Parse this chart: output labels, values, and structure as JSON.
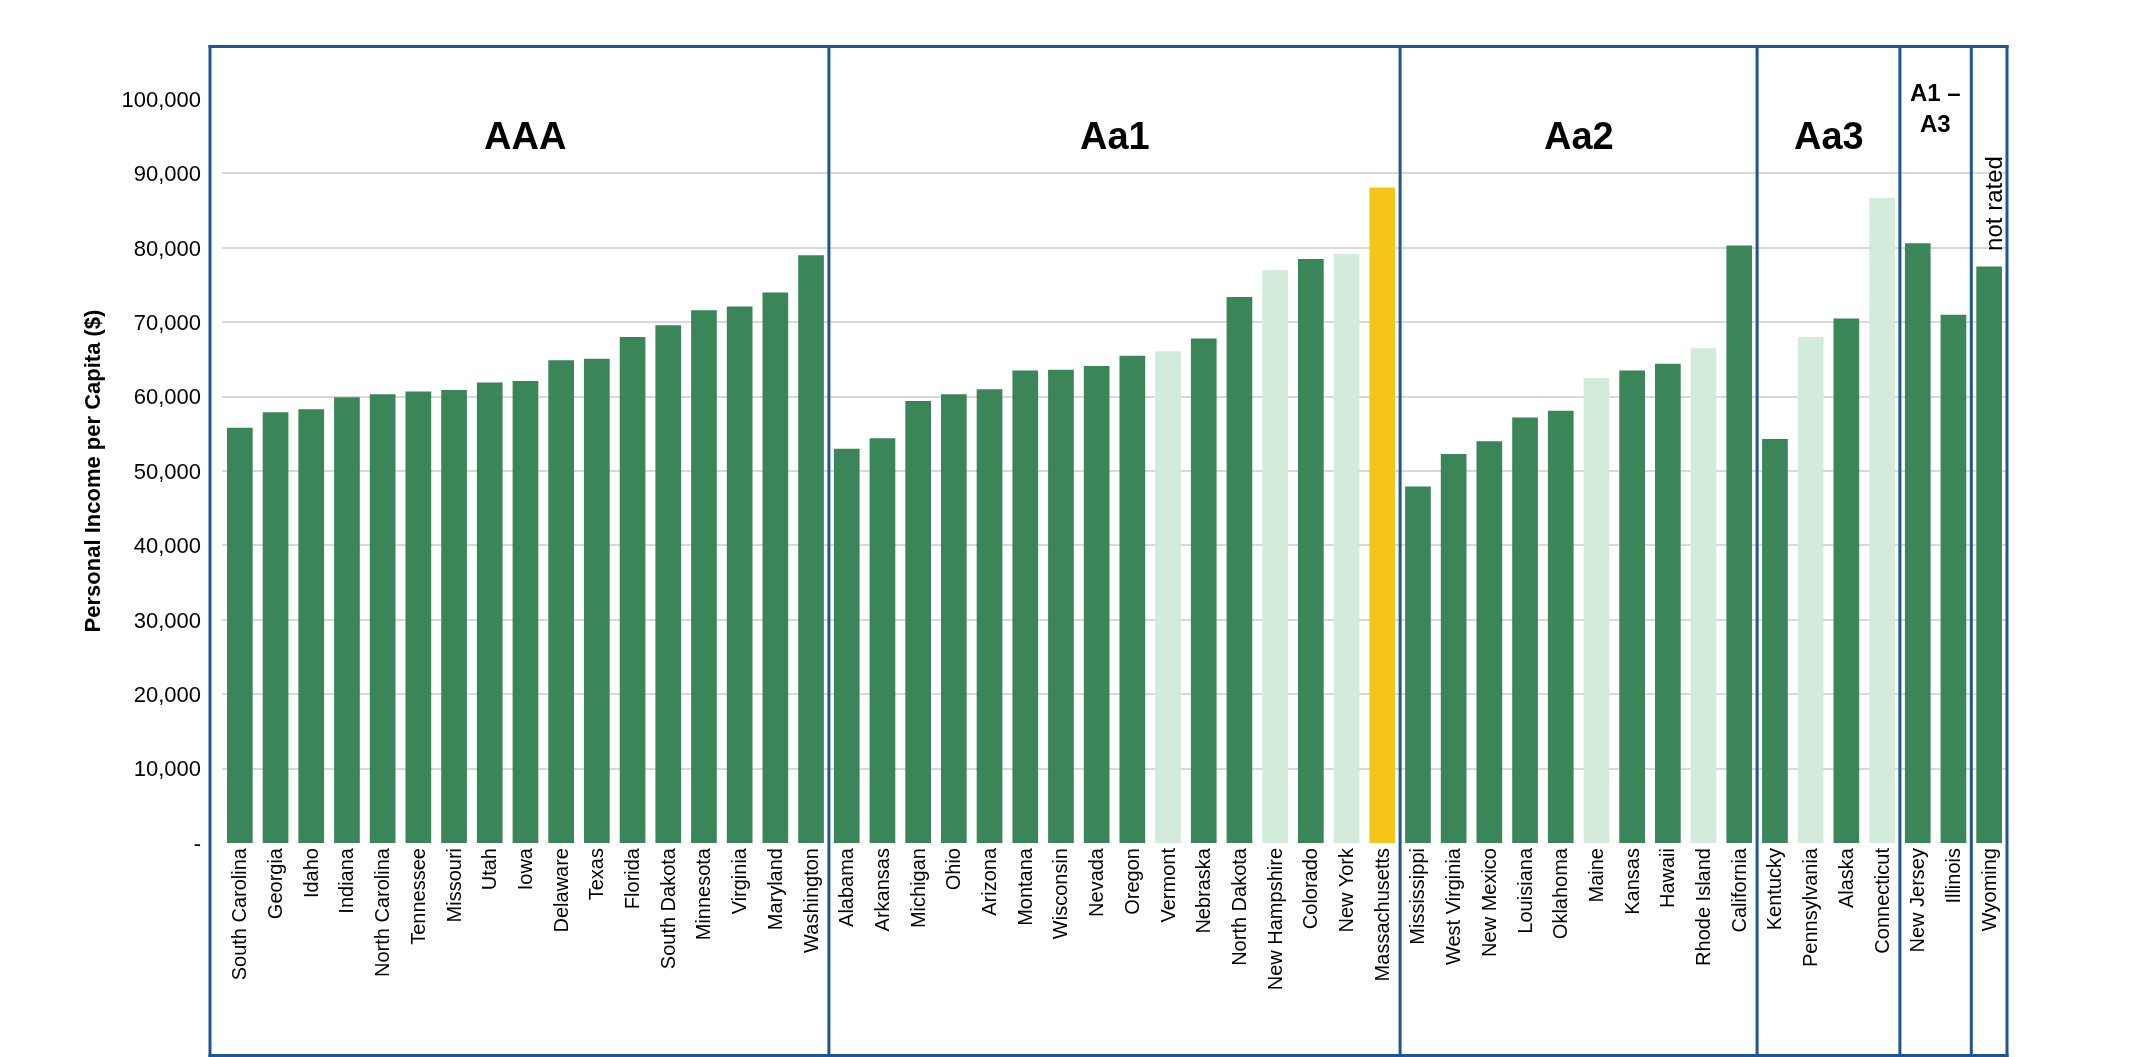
{
  "chart_data": {
    "type": "bar",
    "ylabel": "Personal Income per Capita ($)",
    "categories": [
      "South Carolina",
      "Georgia",
      "Idaho",
      "Indiana",
      "North Carolina",
      "Tennessee",
      "Missouri",
      "Utah",
      "Iowa",
      "Delaware",
      "Texas",
      "Florida",
      "South Dakota",
      "Minnesota",
      "Virginia",
      "Maryland",
      "Washington",
      "Alabama",
      "Arkansas",
      "Michigan",
      "Ohio",
      "Arizona",
      "Montana",
      "Wisconsin",
      "Nevada",
      "Oregon",
      "Vermont",
      "Nebraska",
      "North Dakota",
      "New Hampshire",
      "Colorado",
      "New York",
      "Massachusetts",
      "Mississippi",
      "West Virginia",
      "New Mexico",
      "Louisiana",
      "Oklahoma",
      "Maine",
      "Kansas",
      "Hawaii",
      "Rhode Island",
      "California",
      "Kentucky",
      "Pennsylvania",
      "Alaska",
      "Connecticut",
      "New Jersey",
      "Illinois",
      "Wyoming"
    ],
    "values": [
      55800,
      57900,
      58300,
      59900,
      60300,
      60700,
      60900,
      61900,
      62100,
      64900,
      65100,
      68000,
      69600,
      71600,
      72100,
      74000,
      79000,
      53000,
      54400,
      59400,
      60300,
      61000,
      63500,
      63600,
      64100,
      65500,
      66100,
      67800,
      73400,
      77000,
      78500,
      79200,
      88100,
      47900,
      52300,
      54000,
      57200,
      58100,
      62500,
      63500,
      64400,
      66500,
      80300,
      54300,
      68000,
      70500,
      86700,
      80600,
      71000,
      77500
    ],
    "colors": [
      "#3a8659",
      "#3a8659",
      "#3a8659",
      "#3a8659",
      "#3a8659",
      "#3a8659",
      "#3a8659",
      "#3a8659",
      "#3a8659",
      "#3a8659",
      "#3a8659",
      "#3a8659",
      "#3a8659",
      "#3a8659",
      "#3a8659",
      "#3a8659",
      "#3a8659",
      "#3a8659",
      "#3a8659",
      "#3a8659",
      "#3a8659",
      "#3a8659",
      "#3a8659",
      "#3a8659",
      "#3a8659",
      "#3a8659",
      "#d2ebdb",
      "#3a8659",
      "#3a8659",
      "#d2ebdb",
      "#3a8659",
      "#d2ebdb",
      "#f5c518",
      "#3a8659",
      "#3a8659",
      "#3a8659",
      "#3a8659",
      "#3a8659",
      "#d2ebdb",
      "#3a8659",
      "#3a8659",
      "#d2ebdb",
      "#3a8659",
      "#3a8659",
      "#d2ebdb",
      "#3a8659",
      "#d2ebdb",
      "#3a8659",
      "#3a8659",
      "#3a8659"
    ],
    "ylim": [
      0,
      100000
    ],
    "yticks": [
      {
        "value": 0,
        "label": "-"
      },
      {
        "value": 10000,
        "label": "10,000"
      },
      {
        "value": 20000,
        "label": "20,000"
      },
      {
        "value": 30000,
        "label": "30,000"
      },
      {
        "value": 40000,
        "label": "40,000"
      },
      {
        "value": 50000,
        "label": "50,000"
      },
      {
        "value": 60000,
        "label": "60,000"
      },
      {
        "value": 70000,
        "label": "70,000"
      },
      {
        "value": 80000,
        "label": "80,000"
      },
      {
        "value": 90000,
        "label": "90,000"
      },
      {
        "value": 100000,
        "label": "100,000"
      }
    ],
    "grid": "y",
    "annotations": [
      "AAA",
      "Aa1",
      "Aa2",
      "Aa3",
      "A1 –\nA3",
      "not rated"
    ]
  }
}
